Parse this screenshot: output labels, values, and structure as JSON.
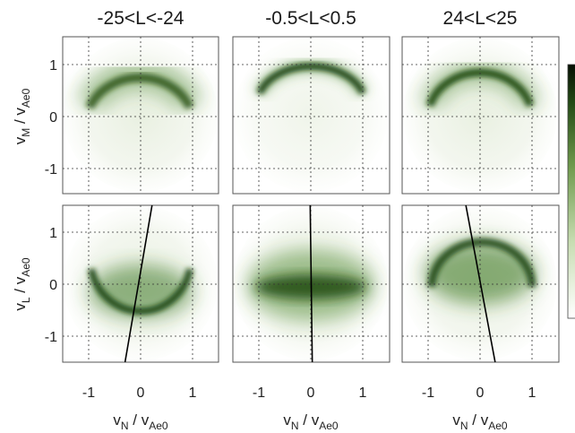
{
  "chart_data": {
    "type": "heatmap",
    "colormap": {
      "low": "#ffffff",
      "high": "#0b2a07"
    },
    "xlim": [
      -1.5,
      1.5
    ],
    "ylim": [
      -1.5,
      1.5
    ],
    "ticks": [
      -1,
      0,
      1
    ],
    "grid": true,
    "row_ylabels": [
      {
        "v": "v",
        "vsub": "M",
        "over": " / v",
        "osub": "Ae0"
      },
      {
        "v": "v",
        "vsub": "L",
        "over": " / v",
        "osub": "Ae0"
      }
    ],
    "xlabel": {
      "v": "v",
      "vsub": "N",
      "over": " / v",
      "osub": "Ae0"
    },
    "columns": [
      {
        "title": "-25<L<-24",
        "bottom_line": {
          "x_at_top": 0.22,
          "x_at_bottom": -0.3
        }
      },
      {
        "title": "-0.5<L<0.5",
        "bottom_line": {
          "x_at_top": -0.02,
          "x_at_bottom": 0.02
        }
      },
      {
        "title": "24<L<25",
        "bottom_line": {
          "x_at_top": -0.28,
          "x_at_bottom": 0.28
        }
      }
    ]
  }
}
